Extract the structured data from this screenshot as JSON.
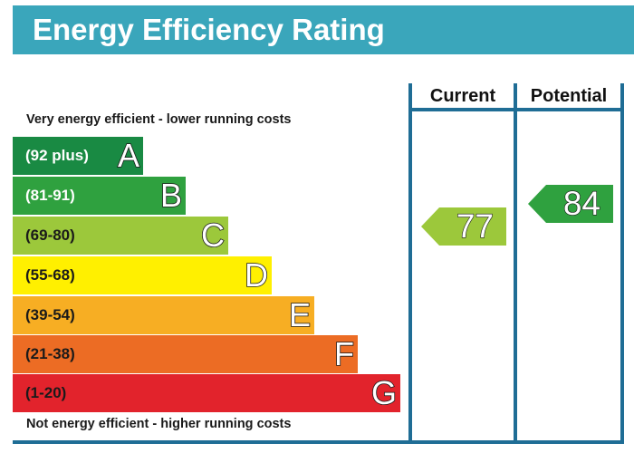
{
  "header": {
    "title": "Energy Efficiency Rating"
  },
  "captions": {
    "top": "Very energy efficient - lower running costs",
    "bottom": "Not energy efficient - higher running costs"
  },
  "columns": {
    "current_label": "Current",
    "potential_label": "Potential"
  },
  "bands": [
    {
      "letter": "A",
      "range": "(92 plus)",
      "color": "#008054"
    },
    {
      "letter": "B",
      "range": "(81-91)",
      "color": "#19b459"
    },
    {
      "letter": "C",
      "range": "(69-80)",
      "color": "#8dce46"
    },
    {
      "letter": "D",
      "range": "(55-68)",
      "color": "#ffd500"
    },
    {
      "letter": "E",
      "range": "(39-54)",
      "color": "#fcaa65"
    },
    {
      "letter": "F",
      "range": "(21-38)",
      "color": "#ef8023"
    },
    {
      "letter": "G",
      "range": "(1-20)",
      "color": "#e9153b"
    }
  ],
  "ratings": {
    "current": {
      "value": "77",
      "band": "C",
      "color": "#8dce46"
    },
    "potential": {
      "value": "84",
      "band": "B",
      "color": "#19b459"
    }
  }
}
